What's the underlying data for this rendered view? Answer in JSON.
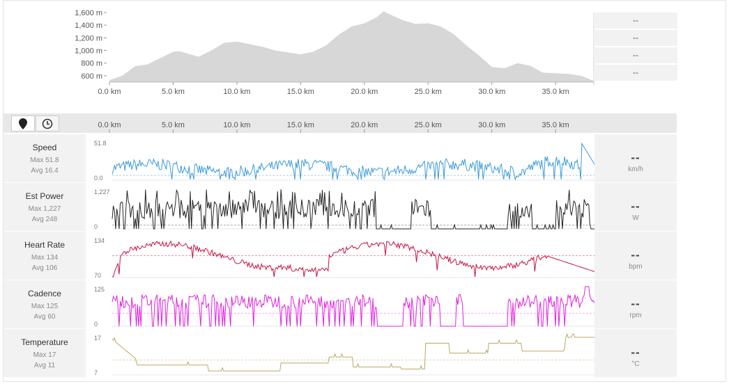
{
  "elevation": {
    "y_ticks": [
      "1,600 m",
      "1,400 m",
      "1,200 m",
      "1,000 m",
      "800 m",
      "600 m"
    ],
    "x_ticks": [
      "0.0 km",
      "5.0 km",
      "10.0 km",
      "15.0 km",
      "20.0 km",
      "25.0 km",
      "30.0 km",
      "35.0 km"
    ],
    "fill_color": "#d7d7d7",
    "side_values": [
      "--",
      "--",
      "--",
      "--"
    ]
  },
  "chart_data": {
    "type": "area",
    "title": "",
    "xlabel": "",
    "ylabel": "",
    "xlim": [
      0,
      38
    ],
    "ylim": [
      500,
      1600
    ],
    "x": [
      0,
      1,
      2,
      3,
      4,
      5,
      5.5,
      6,
      7,
      8,
      9,
      10,
      11,
      12,
      13,
      14,
      15,
      16,
      17,
      18,
      19,
      20,
      21,
      21.5,
      22,
      23,
      24,
      25,
      26,
      27,
      28,
      29,
      30,
      31,
      32,
      33,
      34,
      35,
      36,
      37,
      38
    ],
    "y": [
      530,
      600,
      750,
      780,
      880,
      980,
      990,
      960,
      900,
      1000,
      1120,
      1140,
      1100,
      1060,
      1000,
      970,
      940,
      980,
      1080,
      1250,
      1380,
      1430,
      1530,
      1620,
      1570,
      1480,
      1420,
      1430,
      1380,
      1260,
      1080,
      920,
      740,
      720,
      800,
      760,
      650,
      640,
      630,
      600,
      520
    ]
  },
  "toolbar": {
    "x_ticks": [
      "0.0 km",
      "5.0 km",
      "10.0 km",
      "15.0 km",
      "20.0 km",
      "25.0 km",
      "30.0 km",
      "35.0 km"
    ]
  },
  "rows": [
    {
      "name": "Speed",
      "max": "Max 51.8",
      "avg": "Avg 16.4",
      "top": "51.8",
      "bottom": "0.0",
      "unit": "km/h",
      "dash": "--",
      "color": "#3a9ad9"
    },
    {
      "name": "Est Power",
      "max": "Max 1,227",
      "avg": "Avg 248",
      "top": "1,227",
      "bottom": "0",
      "unit": "W",
      "dash": "--",
      "color": "#222222"
    },
    {
      "name": "Heart Rate",
      "max": "Max 134",
      "avg": "Avg 106",
      "top": "134",
      "bottom": "70",
      "unit": "bpm",
      "dash": "--",
      "color": "#c8103e"
    },
    {
      "name": "Cadence",
      "max": "Max 125",
      "avg": "Avg 60",
      "top": "125",
      "bottom": "0",
      "unit": "rpm",
      "dash": "--",
      "color": "#e01de0"
    },
    {
      "name": "Temperature",
      "max": "Max 17",
      "avg": "Avg 11",
      "top": "17",
      "bottom": "7",
      "unit": "°C",
      "dash": "--",
      "color": "#b8a862"
    }
  ]
}
